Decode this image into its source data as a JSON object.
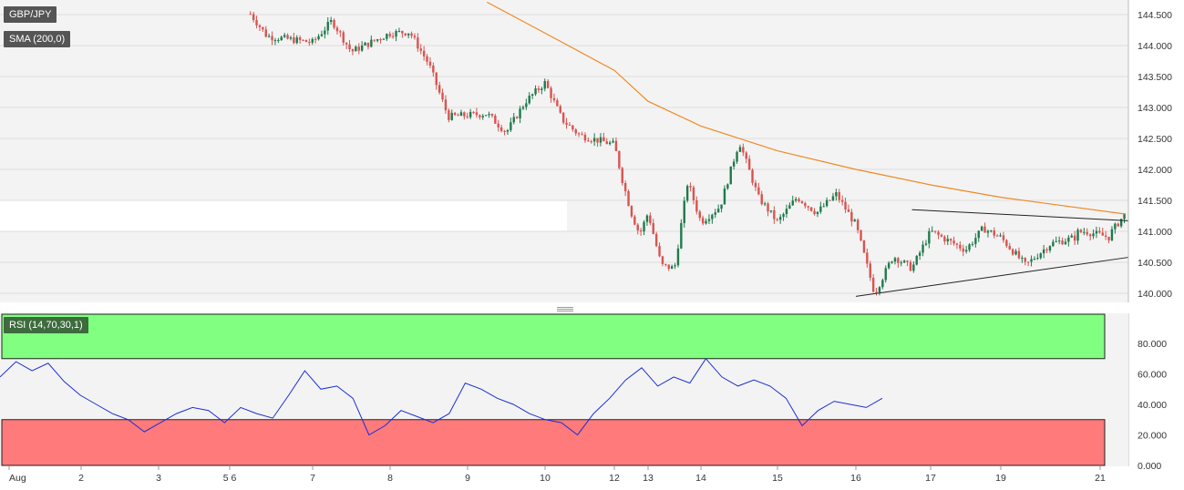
{
  "legend": {
    "symbol": "GBP/JPY",
    "sma": "SMA (200,0)",
    "rsi": "RSI (14,70,30,1)"
  },
  "colors": {
    "bull": "#1f7a4c",
    "bear": "#d9534f",
    "sma": "#f08a24",
    "rsi": "#1a2fd6",
    "overbought": "#80ff80",
    "oversold": "#ff7a7a",
    "trendline": "#222222"
  },
  "chart_data": [
    {
      "type": "candlestick",
      "title": "GBP/JPY",
      "y_ticks": [
        "144.500",
        "144.000",
        "143.500",
        "143.000",
        "142.500",
        "142.000",
        "141.500",
        "141.000",
        "140.500",
        "140.000"
      ],
      "x_ticks": [
        "Aug",
        "2",
        "3",
        "5 6",
        "7",
        "8",
        "9",
        "10",
        "12",
        "13",
        "14",
        "15",
        "16",
        "17",
        "19",
        "21"
      ],
      "ylim": [
        139.9,
        144.7
      ],
      "grid": true,
      "price_path": [
        [
          "Aug 5 06:00",
          144.68
        ],
        [
          "Aug 6 00:00",
          144.6
        ],
        [
          "Aug 6 06:00",
          144.15
        ],
        [
          "Aug 7 00:00",
          144.05
        ],
        [
          "Aug 7 06:00",
          144.4
        ],
        [
          "Aug 7 12:00",
          143.9
        ],
        [
          "Aug 8 00:00",
          144.2
        ],
        [
          "Aug 8 06:00",
          144.22
        ],
        [
          "Aug 8 12:00",
          143.7
        ],
        [
          "Aug 8 18:00",
          142.85
        ],
        [
          "Aug 9 06:00",
          142.9
        ],
        [
          "Aug 9 12:00",
          142.6
        ],
        [
          "Aug 9 18:00",
          143.1
        ],
        [
          "Aug 10 00:00",
          143.4
        ],
        [
          "Aug 10 06:00",
          142.8
        ],
        [
          "Aug 10 12:00",
          142.55
        ],
        [
          "Aug 12 00:00",
          142.4
        ],
        [
          "Aug 12 06:00",
          141.8
        ],
        [
          "Aug 12 12:00",
          141.3
        ],
        [
          "Aug 12 18:00",
          140.95
        ],
        [
          "Aug 13 00:00",
          141.3
        ],
        [
          "Aug 13 06:00",
          140.45
        ],
        [
          "Aug 13 12:00",
          140.4
        ],
        [
          "Aug 13 18:00",
          141.8
        ],
        [
          "Aug 14 00:00",
          141.15
        ],
        [
          "Aug 14 06:00",
          141.4
        ],
        [
          "Aug 14 12:00",
          142.45
        ],
        [
          "Aug 14 18:00",
          141.55
        ],
        [
          "Aug 15 00:00",
          141.15
        ],
        [
          "Aug 15 06:00",
          141.55
        ],
        [
          "Aug 15 12:00",
          141.3
        ],
        [
          "Aug 15 18:00",
          141.6
        ],
        [
          "Aug 16 00:00",
          141.1
        ],
        [
          "Aug 16 06:00",
          140.0
        ],
        [
          "Aug 16 12:00",
          140.6
        ],
        [
          "Aug 16 18:00",
          140.4
        ],
        [
          "Aug 17 00:00",
          141.0
        ],
        [
          "Aug 17 06:00",
          140.85
        ],
        [
          "Aug 17 12:00",
          140.7
        ],
        [
          "Aug 17 18:00",
          141.05
        ],
        [
          "Aug 19 00:00",
          140.9
        ],
        [
          "Aug 19 06:00",
          140.45
        ],
        [
          "Aug 19 12:00",
          140.8
        ],
        [
          "Aug 19 18:00",
          140.9
        ],
        [
          "Aug 20 00:00",
          140.95
        ],
        [
          "Aug 20 06:00",
          141.0
        ],
        [
          "Aug 20 12:00",
          140.9
        ],
        [
          "Aug 21 00:00",
          140.75
        ],
        [
          "Aug 21 06:00",
          141.28
        ]
      ],
      "sma200": [
        [
          "Aug 9 06:00",
          144.7
        ],
        [
          "Aug 10 00:00",
          144.2
        ],
        [
          "Aug 12 00:00",
          143.6
        ],
        [
          "Aug 13 00:00",
          143.1
        ],
        [
          "Aug 14 00:00",
          142.7
        ],
        [
          "Aug 15 00:00",
          142.3
        ],
        [
          "Aug 16 00:00",
          142.0
        ],
        [
          "Aug 17 00:00",
          141.75
        ],
        [
          "Aug 19 00:00",
          141.55
        ],
        [
          "Aug 21 06:00",
          141.28
        ]
      ],
      "annotations": [
        {
          "type": "trendline",
          "label": "upper",
          "from": [
            "Aug 16 18:00",
            141.35
          ],
          "to": [
            "Aug 21 12:00",
            141.18
          ]
        },
        {
          "type": "trendline",
          "label": "lower",
          "from": [
            "Aug 16 00:00",
            139.95
          ],
          "to": [
            "Aug 21 12:00",
            140.55
          ]
        }
      ]
    },
    {
      "type": "line",
      "title": "RSI (14,70,30,1)",
      "y_ticks": [
        "80.000",
        "60.000",
        "40.000",
        "20.000",
        "0.000"
      ],
      "ylim": [
        0,
        90
      ],
      "overbought": 70,
      "oversold": 30,
      "series": [
        {
          "name": "RSI (14,70,30,1)",
          "values": [
            [
              0,
              58
            ],
            [
              4,
              68
            ],
            [
              8,
              62
            ],
            [
              12,
              67
            ],
            [
              16,
              55
            ],
            [
              20,
              46
            ],
            [
              24,
              40
            ],
            [
              28,
              34
            ],
            [
              32,
              30
            ],
            [
              36,
              22
            ],
            [
              40,
              28
            ],
            [
              44,
              34
            ],
            [
              48,
              38
            ],
            [
              52,
              36
            ],
            [
              56,
              28
            ],
            [
              60,
              38
            ],
            [
              64,
              34
            ],
            [
              68,
              31
            ],
            [
              72,
              46
            ],
            [
              76,
              62
            ],
            [
              80,
              50
            ],
            [
              84,
              52
            ],
            [
              88,
              44
            ],
            [
              92,
              20
            ],
            [
              96,
              26
            ],
            [
              100,
              36
            ],
            [
              104,
              32
            ],
            [
              108,
              28
            ],
            [
              112,
              34
            ],
            [
              116,
              54
            ],
            [
              120,
              50
            ],
            [
              124,
              44
            ],
            [
              128,
              40
            ],
            [
              132,
              34
            ],
            [
              136,
              30
            ],
            [
              140,
              28
            ],
            [
              144,
              20
            ],
            [
              148,
              34
            ],
            [
              152,
              44
            ],
            [
              156,
              56
            ],
            [
              160,
              64
            ],
            [
              164,
              52
            ],
            [
              168,
              58
            ],
            [
              172,
              54
            ],
            [
              176,
              70
            ],
            [
              180,
              58
            ],
            [
              184,
              52
            ],
            [
              188,
              56
            ],
            [
              192,
              52
            ],
            [
              196,
              44
            ],
            [
              200,
              26
            ],
            [
              204,
              36
            ],
            [
              208,
              42
            ],
            [
              212,
              40
            ],
            [
              216,
              38
            ],
            [
              220,
              44
            ]
          ]
        }
      ]
    }
  ]
}
